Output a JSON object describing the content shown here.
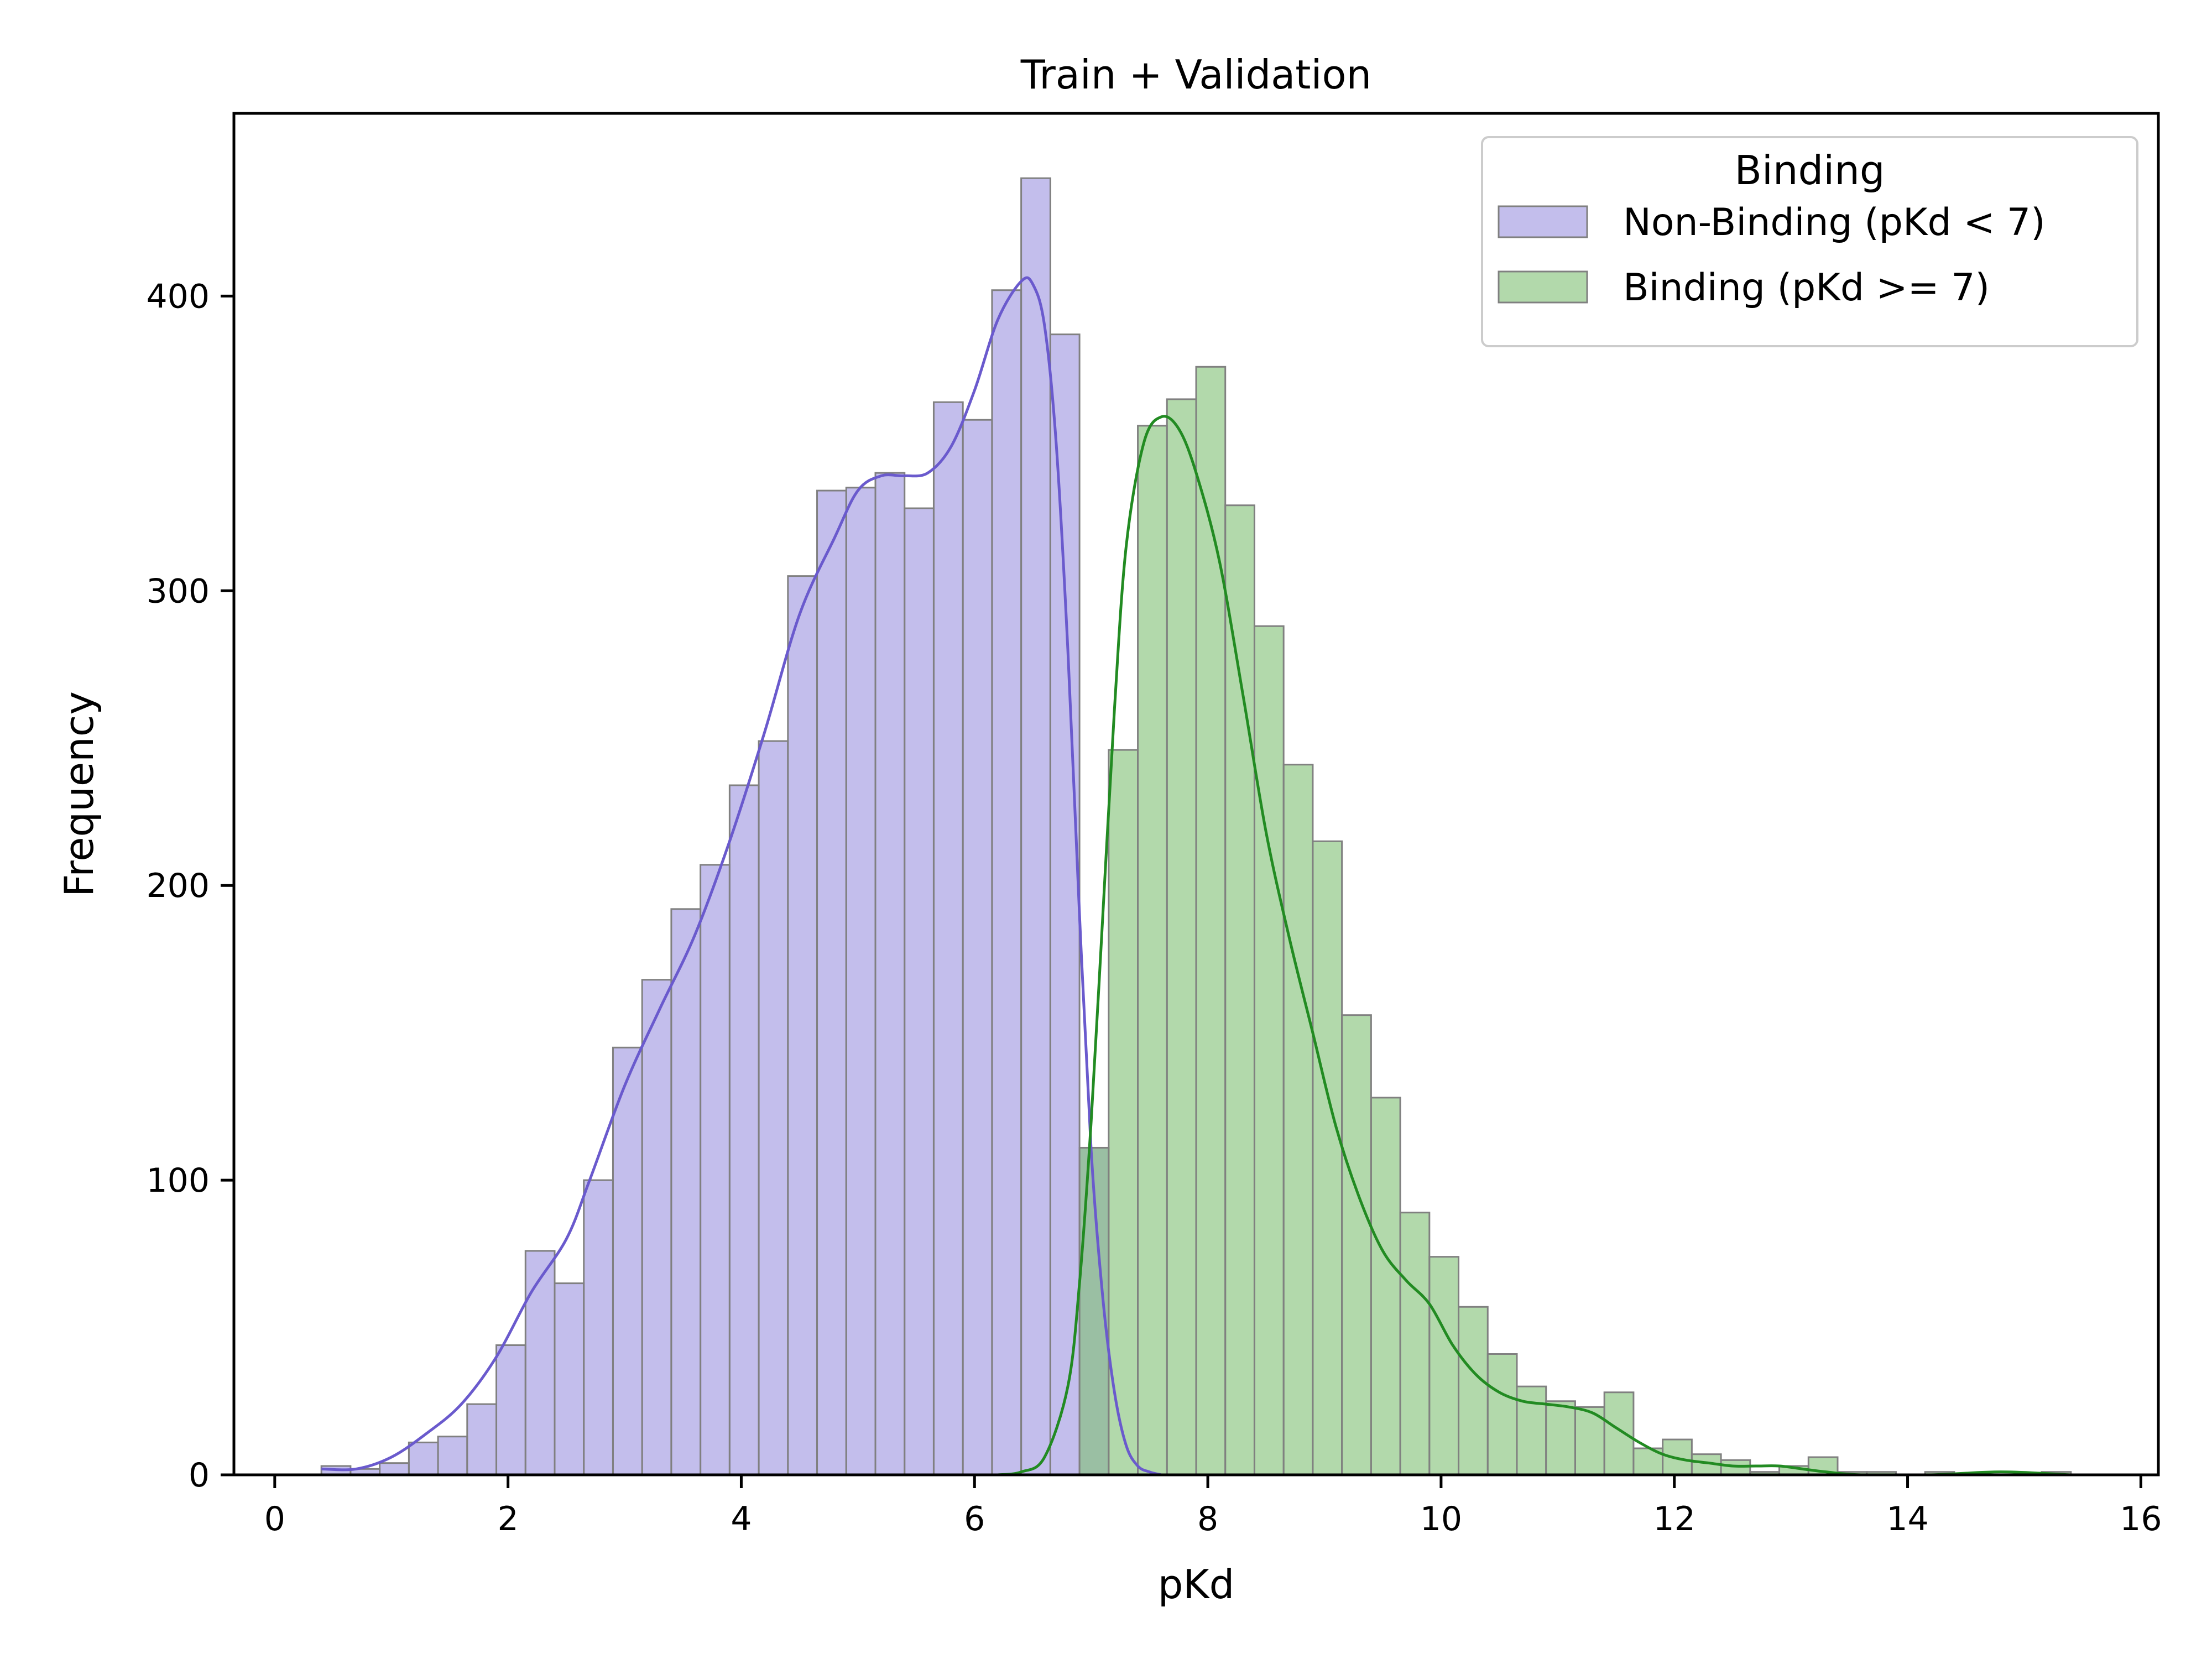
{
  "chart_data": {
    "type": "bar",
    "title": "Train + Validation",
    "xlabel": "pKd",
    "ylabel": "Frequency",
    "xlim": [
      -0.35,
      16.15
    ],
    "ylim": [
      0,
      462
    ],
    "xticks": [
      0,
      2,
      4,
      6,
      8,
      10,
      12,
      14,
      16
    ],
    "yticks": [
      0,
      100,
      200,
      300,
      400
    ],
    "bin_edges": [
      0.4,
      0.65,
      0.9,
      1.15,
      1.4,
      1.65,
      1.9,
      2.15,
      2.4,
      2.65,
      2.9,
      3.15,
      3.4,
      3.65,
      3.9,
      4.15,
      4.4,
      4.65,
      4.9,
      5.15,
      5.4,
      5.65,
      5.9,
      6.15,
      6.4,
      6.65,
      6.9,
      7.15,
      7.4,
      7.65,
      7.9,
      8.15,
      8.4,
      8.65,
      8.9,
      9.15,
      9.4,
      9.65,
      9.9,
      10.15,
      10.4,
      10.65,
      10.9,
      11.15,
      11.4,
      11.65,
      11.9,
      12.15,
      12.4,
      12.65,
      12.9,
      13.15,
      13.4,
      13.65,
      13.9,
      14.15,
      14.4,
      14.65,
      14.9,
      15.15,
      15.4
    ],
    "grid": false,
    "legend": {
      "title": "Binding",
      "placement": "top-right"
    },
    "series": [
      {
        "name": "Non-Binding (pKd < 7)",
        "fill": "#9b93e0",
        "line": "#6a5acd",
        "values": [
          3,
          2,
          4,
          11,
          13,
          24,
          44,
          76,
          65,
          100,
          145,
          168,
          192,
          207,
          234,
          249,
          305,
          334,
          335,
          340,
          328,
          364,
          358,
          402,
          440,
          387,
          111,
          0,
          0,
          0,
          0,
          0,
          0,
          0,
          0,
          0,
          0,
          0,
          0,
          0,
          0,
          0,
          0,
          0,
          0,
          0,
          0,
          0,
          0,
          0,
          0,
          0,
          0,
          0,
          0,
          0,
          0,
          0,
          0,
          0
        ],
        "kde": [
          [
            0.4,
            2
          ],
          [
            0.7,
            2
          ],
          [
            1.0,
            6
          ],
          [
            1.3,
            14
          ],
          [
            1.6,
            24
          ],
          [
            1.9,
            40
          ],
          [
            2.2,
            62
          ],
          [
            2.5,
            80
          ],
          [
            2.7,
            100
          ],
          [
            3.0,
            132
          ],
          [
            3.3,
            158
          ],
          [
            3.6,
            183
          ],
          [
            3.9,
            215
          ],
          [
            4.2,
            252
          ],
          [
            4.5,
            292
          ],
          [
            4.8,
            318
          ],
          [
            5.0,
            334
          ],
          [
            5.2,
            339
          ],
          [
            5.4,
            339
          ],
          [
            5.6,
            340
          ],
          [
            5.8,
            349
          ],
          [
            6.0,
            368
          ],
          [
            6.2,
            392
          ],
          [
            6.4,
            405
          ],
          [
            6.5,
            404
          ],
          [
            6.6,
            390
          ],
          [
            6.7,
            350
          ],
          [
            6.8,
            280
          ],
          [
            6.9,
            190
          ],
          [
            7.0,
            110
          ],
          [
            7.1,
            60
          ],
          [
            7.2,
            28
          ],
          [
            7.3,
            10
          ],
          [
            7.4,
            3
          ],
          [
            7.5,
            1
          ],
          [
            7.6,
            0
          ]
        ]
      },
      {
        "name": "Binding (pKd >= 7)",
        "fill": "#7fbf73",
        "line": "#228b22",
        "values": [
          0,
          0,
          0,
          0,
          0,
          0,
          0,
          0,
          0,
          0,
          0,
          0,
          0,
          0,
          0,
          0,
          0,
          0,
          0,
          0,
          0,
          0,
          0,
          0,
          0,
          0,
          111,
          246,
          356,
          365,
          376,
          329,
          288,
          241,
          215,
          156,
          128,
          89,
          74,
          57,
          41,
          30,
          25,
          23,
          28,
          9,
          12,
          7,
          5,
          1,
          3,
          6,
          1,
          1,
          0,
          1,
          0,
          0,
          0,
          1
        ],
        "kde": [
          [
            6.2,
            0
          ],
          [
            6.4,
            1
          ],
          [
            6.6,
            6
          ],
          [
            6.8,
            30
          ],
          [
            6.9,
            65
          ],
          [
            7.0,
            120
          ],
          [
            7.1,
            190
          ],
          [
            7.2,
            260
          ],
          [
            7.3,
            315
          ],
          [
            7.45,
            350
          ],
          [
            7.6,
            359
          ],
          [
            7.75,
            355
          ],
          [
            7.9,
            340
          ],
          [
            8.1,
            310
          ],
          [
            8.3,
            265
          ],
          [
            8.5,
            218
          ],
          [
            8.7,
            182
          ],
          [
            8.9,
            150
          ],
          [
            9.1,
            118
          ],
          [
            9.3,
            94
          ],
          [
            9.5,
            76
          ],
          [
            9.7,
            66
          ],
          [
            9.9,
            58
          ],
          [
            10.1,
            44
          ],
          [
            10.3,
            34
          ],
          [
            10.5,
            28
          ],
          [
            10.7,
            25
          ],
          [
            10.9,
            24
          ],
          [
            11.1,
            23
          ],
          [
            11.3,
            21
          ],
          [
            11.5,
            16
          ],
          [
            11.7,
            11
          ],
          [
            11.9,
            7
          ],
          [
            12.1,
            5
          ],
          [
            12.3,
            4
          ],
          [
            12.5,
            3
          ],
          [
            12.7,
            3
          ],
          [
            12.9,
            3
          ],
          [
            13.1,
            2
          ],
          [
            13.3,
            1
          ],
          [
            13.6,
            0
          ],
          [
            14.2,
            0
          ],
          [
            14.8,
            1
          ],
          [
            15.4,
            0
          ]
        ]
      }
    ]
  }
}
